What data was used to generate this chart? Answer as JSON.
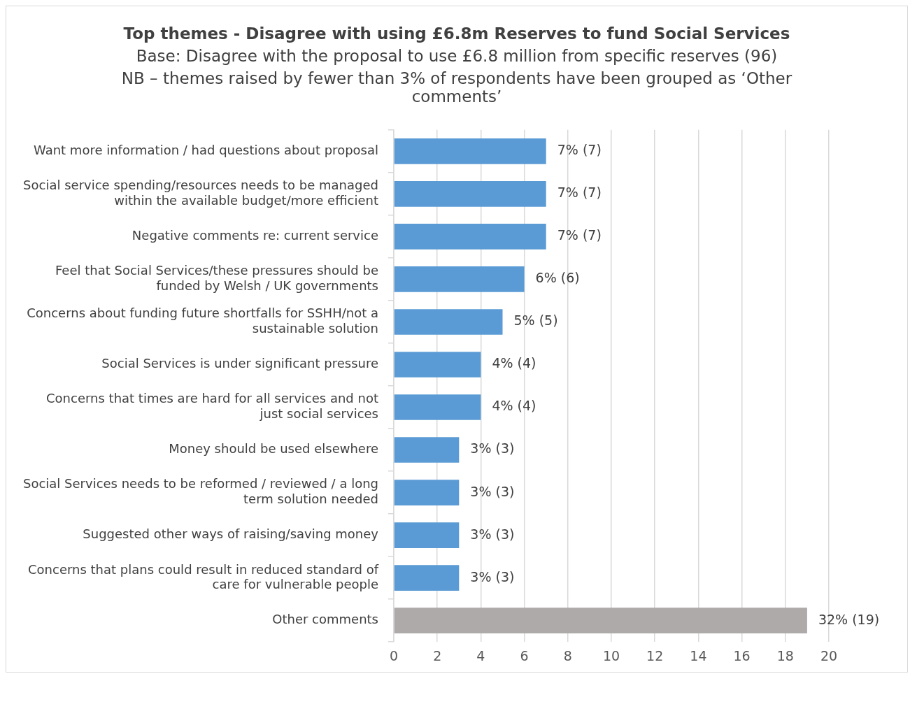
{
  "chart_data": {
    "type": "bar",
    "orientation": "horizontal",
    "title": "Top themes - Disagree with using £6.8m Reserves to fund Social Services",
    "subtitle": "Base: Disagree with the proposal to use £6.8 million from specific reserves (96)",
    "annotations": [
      "NB – themes raised by fewer than 3% of respondents have been grouped as ‘Other comments’"
    ],
    "categories": [
      "Want more information / had questions about proposal",
      "Social service spending/resources needs to be managed within the available budget/more efficient",
      "Negative comments re: current service",
      "Feel that Social Services/these pressures should be funded by Welsh / UK governments",
      "Concerns about funding future shortfalls for SSHH/not a sustainable solution",
      "Social Services is under significant pressure",
      "Concerns that times are hard for all services and not just social services",
      "Money should be used elsewhere",
      "Social Services needs to be reformed / reviewed / a long term solution needed",
      "Suggested other ways of raising/saving money",
      "Concerns that plans could result in reduced standard of care for vulnerable people",
      "Other comments"
    ],
    "values": [
      7,
      7,
      7,
      6,
      5,
      4,
      4,
      3,
      3,
      3,
      3,
      19
    ],
    "colors": [
      "#5b9bd5",
      "#5b9bd5",
      "#5b9bd5",
      "#5b9bd5",
      "#5b9bd5",
      "#5b9bd5",
      "#5b9bd5",
      "#5b9bd5",
      "#5b9bd5",
      "#5b9bd5",
      "#5b9bd5",
      "#aeaaaa"
    ],
    "value_labels": [
      "7% (7)",
      "7% (7)",
      "7% (7)",
      "6% (6)",
      "5% (5)",
      "4% (4)",
      "4% (4)",
      "3% (3)",
      "3% (3)",
      "3% (3)",
      "3% (3)",
      "32% (19)"
    ],
    "xlim": [
      0,
      20
    ],
    "xticks": [
      0,
      2,
      4,
      6,
      8,
      10,
      12,
      14,
      16,
      18,
      20
    ],
    "grid": "x",
    "legend": false
  }
}
